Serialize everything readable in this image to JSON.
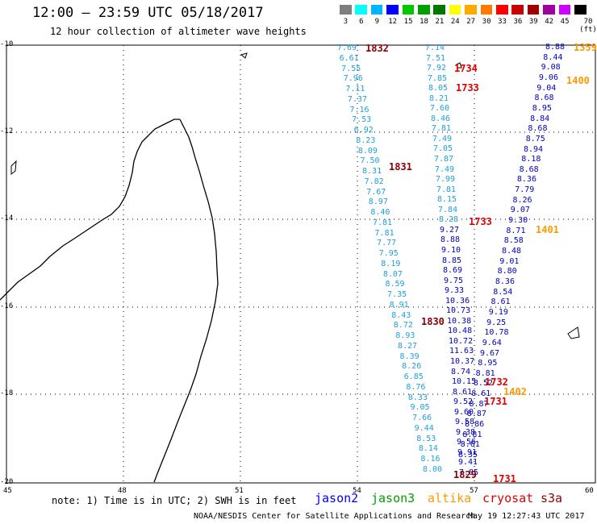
{
  "header": {
    "title": "12:00 – 23:59 UTC 05/18/2017",
    "subtitle": "12 hour collection of altimeter wave heights",
    "scale_labels": [
      "3",
      "6",
      "9",
      "12",
      "15",
      "18",
      "21",
      "24",
      "27",
      "30",
      "33",
      "36",
      "39",
      "42",
      "45",
      "70 (ft)"
    ],
    "scale_colors": [
      "#7f7f7f",
      "#00ffff",
      "#00b4ff",
      "#0000ff",
      "#00c800",
      "#00a000",
      "#007800",
      "#ffff00",
      "#ffaa00",
      "#ff7800",
      "#ff0000",
      "#c80000",
      "#a00000",
      "#a000a0",
      "#d200ff",
      "#000000"
    ]
  },
  "map": {
    "lat_labels": [
      "-10",
      "-12",
      "-14",
      "-16",
      "-18",
      "-20"
    ],
    "lon_labels": [
      "45",
      "48",
      "51",
      "54",
      "57",
      "60"
    ]
  },
  "tracks": {
    "track_a": {
      "color": "#1ea0dc",
      "values": [
        "7.69",
        "6.61",
        "7.55",
        "7.96",
        "7.11",
        "7.37",
        "7.16",
        "7.53",
        "6.92",
        "8.23",
        "8.09",
        "7.50",
        "8.31",
        "7.82",
        "7.67",
        "8.97",
        "8.40",
        "7.81",
        "7.81",
        "7.77",
        "7.95",
        "8.19",
        "8.07",
        "8.59",
        "7.35",
        "8.91",
        "8.43",
        "8.72",
        "8.93",
        "8.27",
        "8.39",
        "8.26",
        "6.85",
        "8.76",
        "8.33",
        "9.05",
        "7.66",
        "9.44",
        "8.53",
        "8.14",
        "8.16",
        "8.00"
      ]
    },
    "track_b": {
      "color": "#1ea0dc",
      "values": [
        "7.14",
        "7.51",
        "7.92",
        "7.85",
        "8.05",
        "8.21",
        "7.60",
        "8.46",
        "7.81",
        "7.49",
        "7.05",
        "7.87",
        "7.49",
        "7.99",
        "7.81",
        "8.15",
        "7.84",
        "8.28",
        "9.27",
        "8.88",
        "9.10",
        "8.85",
        "8.69",
        "9.75",
        "9.33",
        "10.36",
        "10.73",
        "10.38",
        "10.48",
        "10.72",
        "11.63",
        "10.37",
        "8.74",
        "10.15",
        "8.61",
        "9.52",
        "9.60",
        "9.58",
        "9.38",
        "9.56",
        "9.91",
        "9.41",
        "7.85"
      ]
    },
    "track_c": {
      "color": "#1ea0dc",
      "values": [
        "8.88",
        "8.44",
        "9.08",
        "9.06",
        "9.04",
        "8.68",
        "8.95",
        "8.84",
        "8.68",
        "8.75",
        "8.94",
        "8.18",
        "8.68",
        "8.36",
        "7.79",
        "8.26",
        "9.07",
        "9.30",
        "8.71",
        "8.58",
        "8.48",
        "9.01",
        "8.80",
        "8.36",
        "8.54",
        "8.61",
        "9.19",
        "9.25",
        "10.78",
        "9.64",
        "9.67",
        "8.95",
        "8.81",
        "8.52",
        "8.61",
        "8.87",
        "8.87",
        "8.86",
        "8.81",
        "8.61",
        "8.35"
      ]
    },
    "times": [
      {
        "label": "1832",
        "color": "#8b0000"
      },
      {
        "label": "1734",
        "color": "#e00000"
      },
      {
        "label": "1733",
        "color": "#e00000"
      },
      {
        "label": "1359",
        "color": "#ff9900"
      },
      {
        "label": "1400",
        "color": "#ff9900"
      },
      {
        "label": "1831",
        "color": "#8b0000"
      },
      {
        "label": "1733",
        "color": "#e00000"
      },
      {
        "label": "1401",
        "color": "#ff9900"
      },
      {
        "label": "1830",
        "color": "#8b0000"
      },
      {
        "label": "1732",
        "color": "#e00000"
      },
      {
        "label": "1402",
        "color": "#ff9900"
      },
      {
        "label": "1731",
        "color": "#e00000"
      },
      {
        "label": "1829",
        "color": "#8b0000"
      },
      {
        "label": "1731",
        "color": "#e00000"
      }
    ]
  },
  "footer": {
    "note": "note: 1) Time is in UTC; 2) SWH is in feet",
    "legend": [
      {
        "label": "jason2",
        "color": "#0000ff"
      },
      {
        "label": "jason3",
        "color": "#00a000"
      },
      {
        "label": "altika",
        "color": "#ff9900"
      },
      {
        "label": "cryosat",
        "color": "#e00000"
      },
      {
        "label": "s3a",
        "color": "#8b0000"
      }
    ],
    "credit": "NOAA/NESDIS Center for Satellite Applications and Research",
    "timestamp": "May 19 12:27:43 UTC 2017"
  }
}
